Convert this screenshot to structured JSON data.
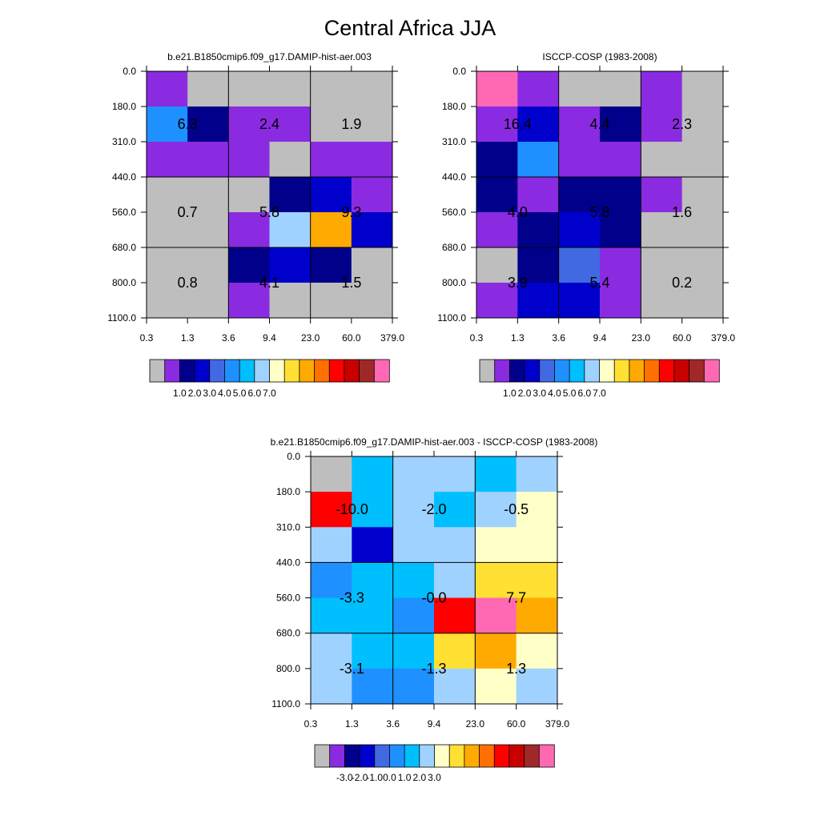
{
  "title": "Central Africa JJA",
  "colors": [
    "#bebebe",
    "#8a2be2",
    "#00008b",
    "#0000cd",
    "#4169e1",
    "#1e90ff",
    "#00bfff",
    "#a0d2ff",
    "#ffffc8",
    "#ffe033",
    "#ffaa00",
    "#ff7000",
    "#ff0000",
    "#c80000",
    "#a02828",
    "#ff69b4"
  ],
  "chart_data": [
    {
      "type": "heatmap",
      "title": "b.e21.B1850cmip6.f09_g17.DAMIP-hist-aer.003",
      "x_ticks": [
        "0.3",
        "1.3",
        "3.6",
        "9.4",
        "23.0",
        "60.0",
        "379.0"
      ],
      "y_ticks": [
        "0.0",
        "180.0",
        "310.0",
        "440.0",
        "560.0",
        "680.0",
        "800.0",
        "1100.0"
      ],
      "cells": [
        [
          0,
          1,
          1,
          1,
          1,
          1,
          0,
          1,
          1,
          1,
          1,
          1,
          0,
          1,
          1,
          0,
          0,
          0,
          1,
          1,
          0,
          0,
          0,
          0,
          2,
          1,
          4,
          5,
          0,
          0,
          0,
          0,
          5,
          6,
          3,
          2,
          0,
          0,
          0,
          0,
          2,
          1,
          2,
          0,
          0,
          0,
          2,
          3,
          0,
          0
        ],
        [
          0,
          0,
          2,
          1,
          1,
          2,
          0,
          0,
          1,
          2,
          2,
          1,
          0,
          0,
          1,
          3,
          0,
          1,
          0,
          0,
          0,
          0,
          1,
          0,
          1,
          1,
          0,
          0,
          0,
          0,
          0,
          0,
          1,
          0,
          0,
          1,
          0,
          0,
          2,
          1,
          1,
          1,
          0,
          0,
          3,
          1,
          1,
          1,
          0,
          0
        ],
        [
          0,
          0,
          0,
          0,
          0,
          0,
          0,
          0,
          0,
          0,
          0,
          0,
          0,
          0,
          0,
          0,
          0,
          0,
          0,
          0,
          0,
          0,
          0,
          0,
          0,
          0,
          0,
          0,
          0,
          0,
          0,
          0,
          0,
          0,
          0,
          0,
          0,
          0,
          0,
          0,
          0,
          0,
          0,
          0,
          0,
          0,
          0,
          0,
          0,
          0
        ]
      ],
      "colors": [
        [
          1,
          0,
          0,
          0,
          0,
          0
        ],
        [
          5,
          2,
          1,
          1,
          0,
          0
        ],
        [
          1,
          1,
          1,
          0,
          1,
          1
        ],
        [
          0,
          0,
          0,
          2,
          3,
          1
        ],
        [
          0,
          0,
          1,
          7,
          10,
          3
        ],
        [
          0,
          0,
          2,
          3,
          2,
          0
        ],
        [
          0,
          0,
          1,
          0,
          0,
          0
        ]
      ],
      "labels": [
        [
          "6.3",
          "2.4",
          "1.9"
        ],
        [
          "0.7",
          "5.8",
          "9.3"
        ],
        [
          "0.8",
          "4.1",
          "1.5"
        ]
      ],
      "colorbar_labels": [
        "1.0",
        "2.0",
        "3.0",
        "4.0",
        "5.0",
        "6.0",
        "7.0"
      ]
    },
    {
      "type": "heatmap",
      "title": "ISCCP-COSP (1983-2008)",
      "x_ticks": [
        "0.3",
        "1.3",
        "3.6",
        "9.4",
        "23.0",
        "60.0",
        "379.0"
      ],
      "y_ticks": [
        "0.0",
        "180.0",
        "310.0",
        "440.0",
        "560.0",
        "680.0",
        "800.0",
        "1100.0"
      ],
      "colors": [
        [
          15,
          1,
          0,
          0,
          1,
          0
        ],
        [
          1,
          3,
          1,
          2,
          1,
          0
        ],
        [
          2,
          5,
          1,
          1,
          0,
          0
        ],
        [
          2,
          1,
          2,
          2,
          1,
          0
        ],
        [
          1,
          2,
          3,
          2,
          0,
          0
        ],
        [
          0,
          2,
          4,
          1,
          0,
          0
        ],
        [
          1,
          3,
          3,
          1,
          0,
          0
        ]
      ],
      "labels": [
        [
          "16.4",
          "4.4",
          "2.3"
        ],
        [
          "4.0",
          "5.8",
          "1.6"
        ],
        [
          "3.9",
          "5.4",
          "0.2"
        ]
      ],
      "colorbar_labels": [
        "1.0",
        "2.0",
        "3.0",
        "4.0",
        "5.0",
        "6.0",
        "7.0"
      ]
    },
    {
      "type": "heatmap",
      "title": "b.e21.B1850cmip6.f09_g17.DAMIP-hist-aer.003 - ISCCP-COSP (1983-2008)",
      "x_ticks": [
        "0.3",
        "1.3",
        "3.6",
        "9.4",
        "23.0",
        "60.0",
        "379.0"
      ],
      "y_ticks": [
        "0.0",
        "180.0",
        "310.0",
        "440.0",
        "560.0",
        "680.0",
        "800.0",
        "1100.0"
      ],
      "colors": [
        [
          0,
          6,
          7,
          7,
          6,
          7
        ],
        [
          12,
          6,
          7,
          6,
          7,
          8
        ],
        [
          7,
          3,
          7,
          7,
          8,
          8
        ],
        [
          5,
          6,
          6,
          7,
          9,
          9
        ],
        [
          6,
          6,
          5,
          12,
          15,
          10
        ],
        [
          7,
          6,
          6,
          9,
          10,
          8
        ],
        [
          7,
          5,
          5,
          7,
          8,
          7
        ]
      ],
      "labels": [
        [
          "-10.0",
          "-2.0",
          "-0.5"
        ],
        [
          "-3.3",
          "-0.0",
          "7.7"
        ],
        [
          "-3.1",
          "-1.3",
          "1.3"
        ]
      ],
      "colorbar_labels": [
        "-3.0",
        "-2.0",
        "-1.0",
        "0.0",
        "1.0",
        "2.0",
        "3.0"
      ]
    }
  ]
}
